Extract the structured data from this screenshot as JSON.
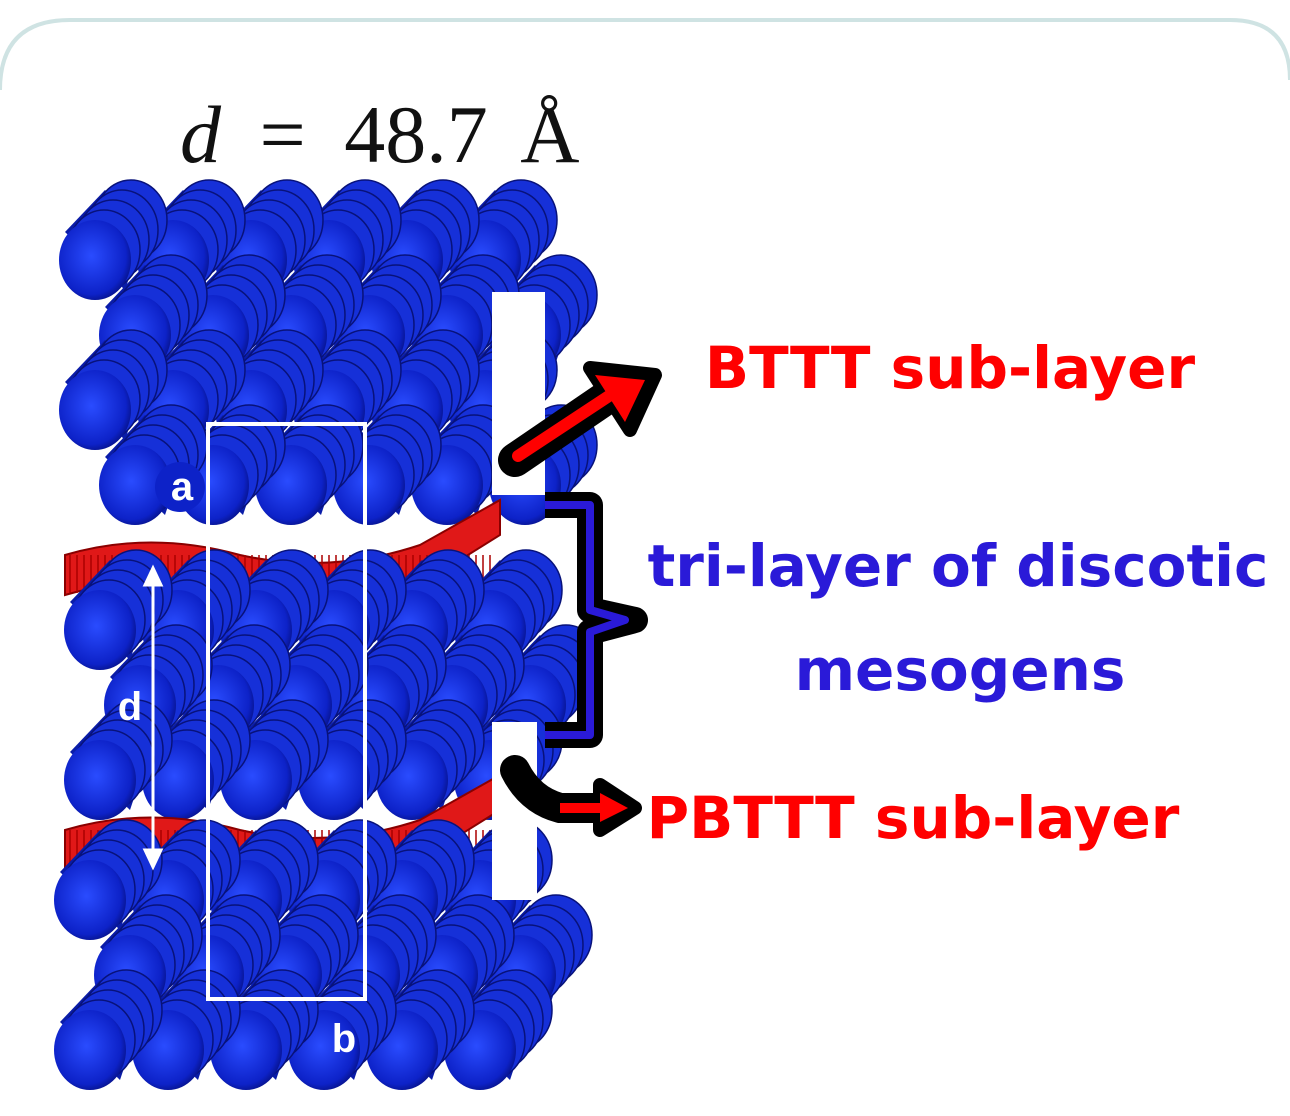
{
  "formula": {
    "variable": "d",
    "equals": "=",
    "value": "48.7",
    "unit": "Å"
  },
  "axis_labels": {
    "a": "a",
    "d": "d",
    "b": "b"
  },
  "labels": {
    "top": "BTTT sub-layer",
    "middle": [
      "tri-layer of discotic",
      "mesogens"
    ],
    "bottom": "PBTTT sub-layer"
  }
}
